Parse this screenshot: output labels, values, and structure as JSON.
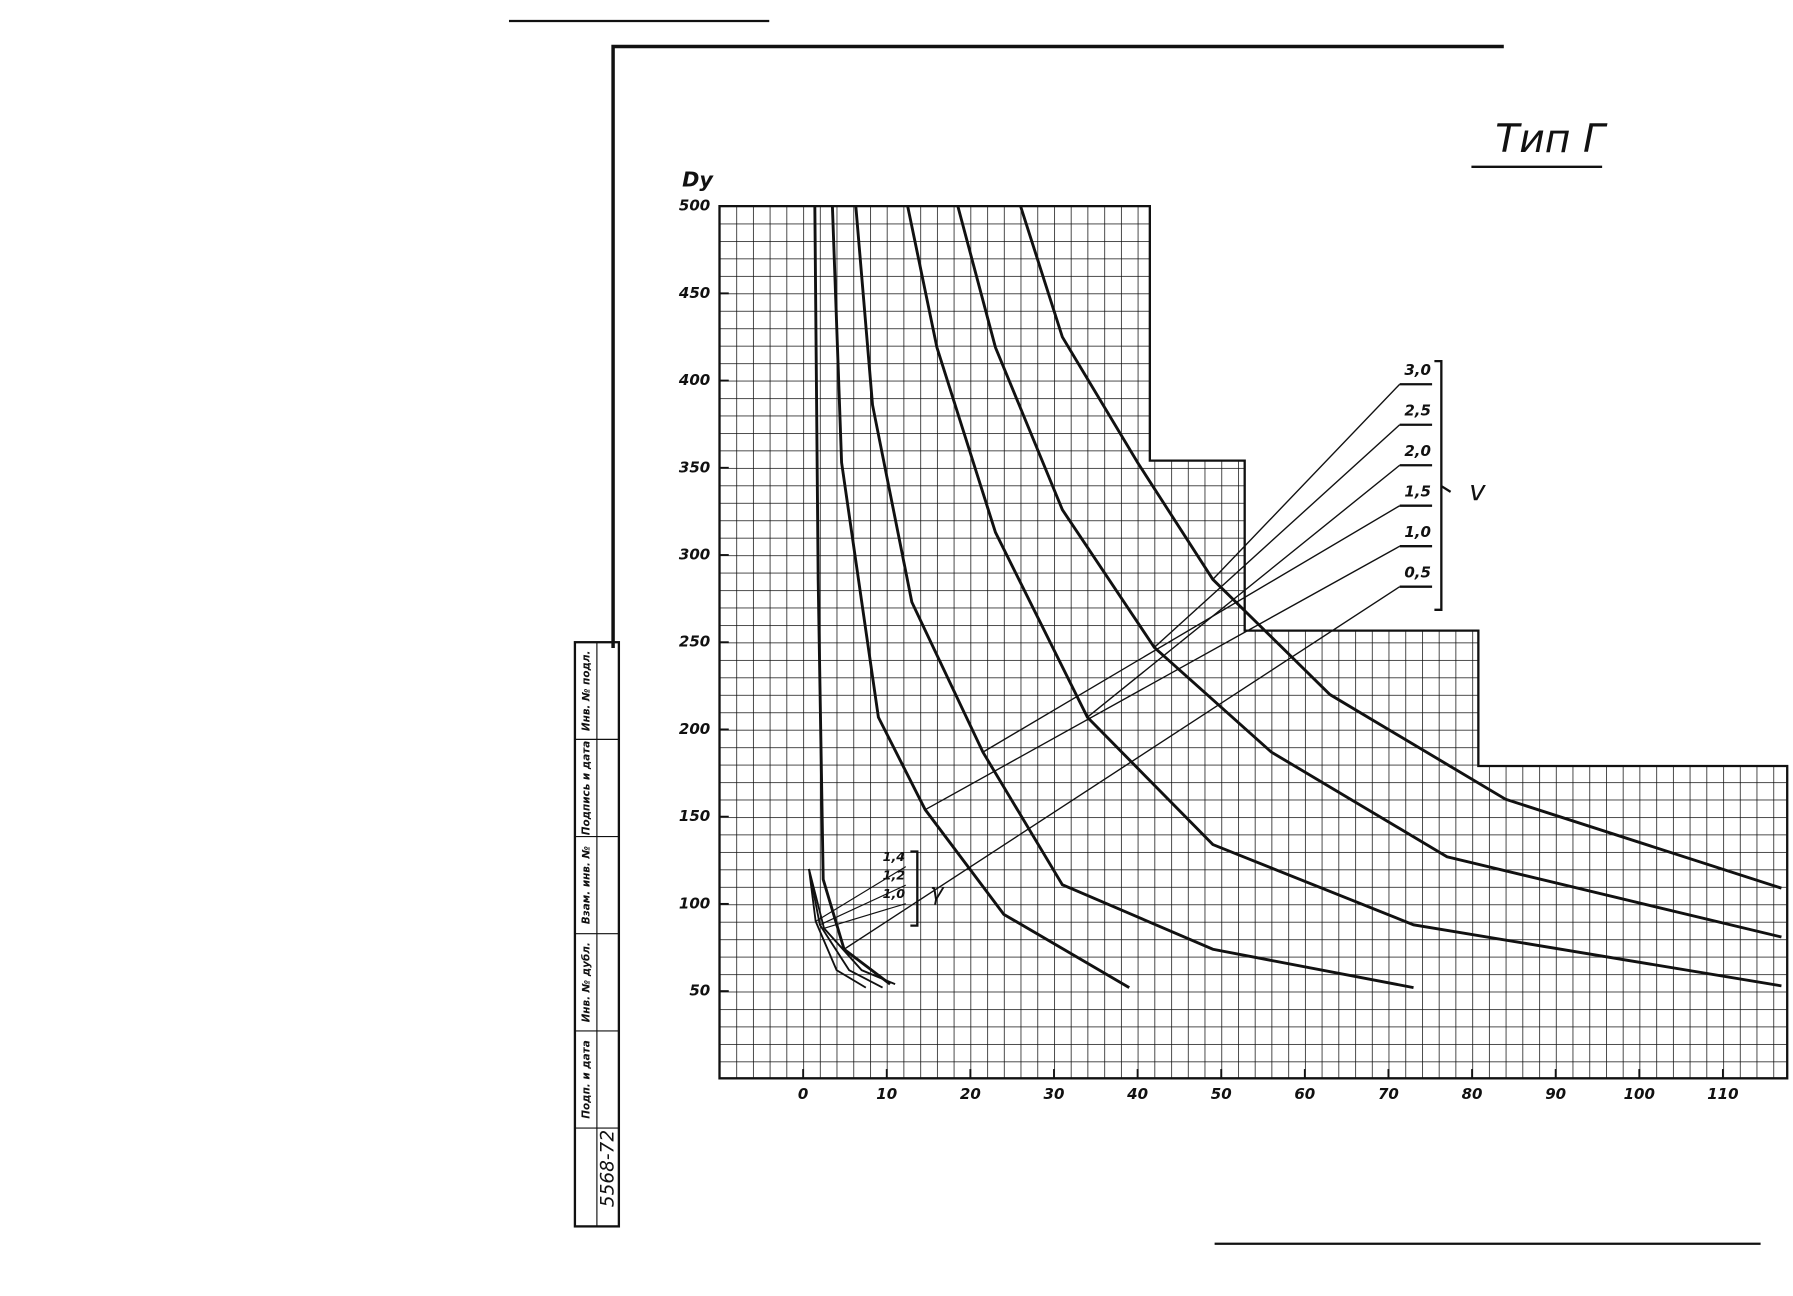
{
  "chart_data": {
    "type": "line",
    "title": "Тип Г",
    "y_label": "Dy",
    "xlim": [
      -10,
      117
    ],
    "ylim": [
      0,
      500
    ],
    "xticks": [
      0,
      10,
      20,
      30,
      40,
      50,
      60,
      70,
      80,
      90,
      100,
      110
    ],
    "yticks": [
      50,
      100,
      150,
      200,
      250,
      300,
      350,
      400,
      450,
      500
    ],
    "grid": true,
    "color": "#111111",
    "legend_symbol": "v",
    "series": [
      {
        "name": "3,0",
        "x": [
          26,
          31,
          40,
          49,
          63,
          84,
          117
        ],
        "values": [
          500,
          425,
          353,
          286,
          220,
          160,
          109
        ]
      },
      {
        "name": "2,5",
        "x": [
          18.5,
          23,
          31,
          42,
          56,
          77,
          117
        ],
        "values": [
          500,
          419,
          326,
          247,
          187,
          127,
          81
        ]
      },
      {
        "name": "2,0",
        "x": [
          12.5,
          16,
          23,
          34,
          49,
          73,
          117
        ],
        "values": [
          500,
          419,
          313,
          207,
          134,
          88,
          53
        ]
      },
      {
        "name": "1,5",
        "x": [
          6.3,
          8.3,
          13,
          21.5,
          31,
          49,
          73
        ],
        "values": [
          500,
          386,
          273,
          187,
          111,
          74,
          52
        ]
      },
      {
        "name": "1,0",
        "x": [
          3.5,
          4.6,
          9,
          14.6,
          24,
          39
        ],
        "values": [
          500,
          353,
          207,
          154,
          94,
          52
        ]
      },
      {
        "name": "0,5",
        "x": [
          1.4,
          1.8,
          2.4,
          4.9,
          10.4
        ],
        "values": [
          500,
          286,
          114,
          74,
          54
        ]
      }
    ],
    "gamma_symbol": "γ",
    "gamma_series": [
      {
        "name": "1,4",
        "x": [
          0.7,
          1.5,
          4,
          7.5
        ],
        "values": [
          120,
          90,
          62,
          52
        ]
      },
      {
        "name": "1,2",
        "x": [
          0.7,
          2,
          5.5,
          9.5
        ],
        "values": [
          120,
          88,
          62,
          52
        ]
      },
      {
        "name": "1,0",
        "x": [
          0.7,
          2.5,
          7,
          11
        ],
        "values": [
          120,
          86,
          62,
          54
        ]
      }
    ]
  },
  "stamp": {
    "cells": [
      "Инв. № подл.",
      "Подпись и дата",
      "Взам. инв. №",
      "Инв. № дубл.",
      "Подп. и дата"
    ],
    "number": "5568-72"
  }
}
